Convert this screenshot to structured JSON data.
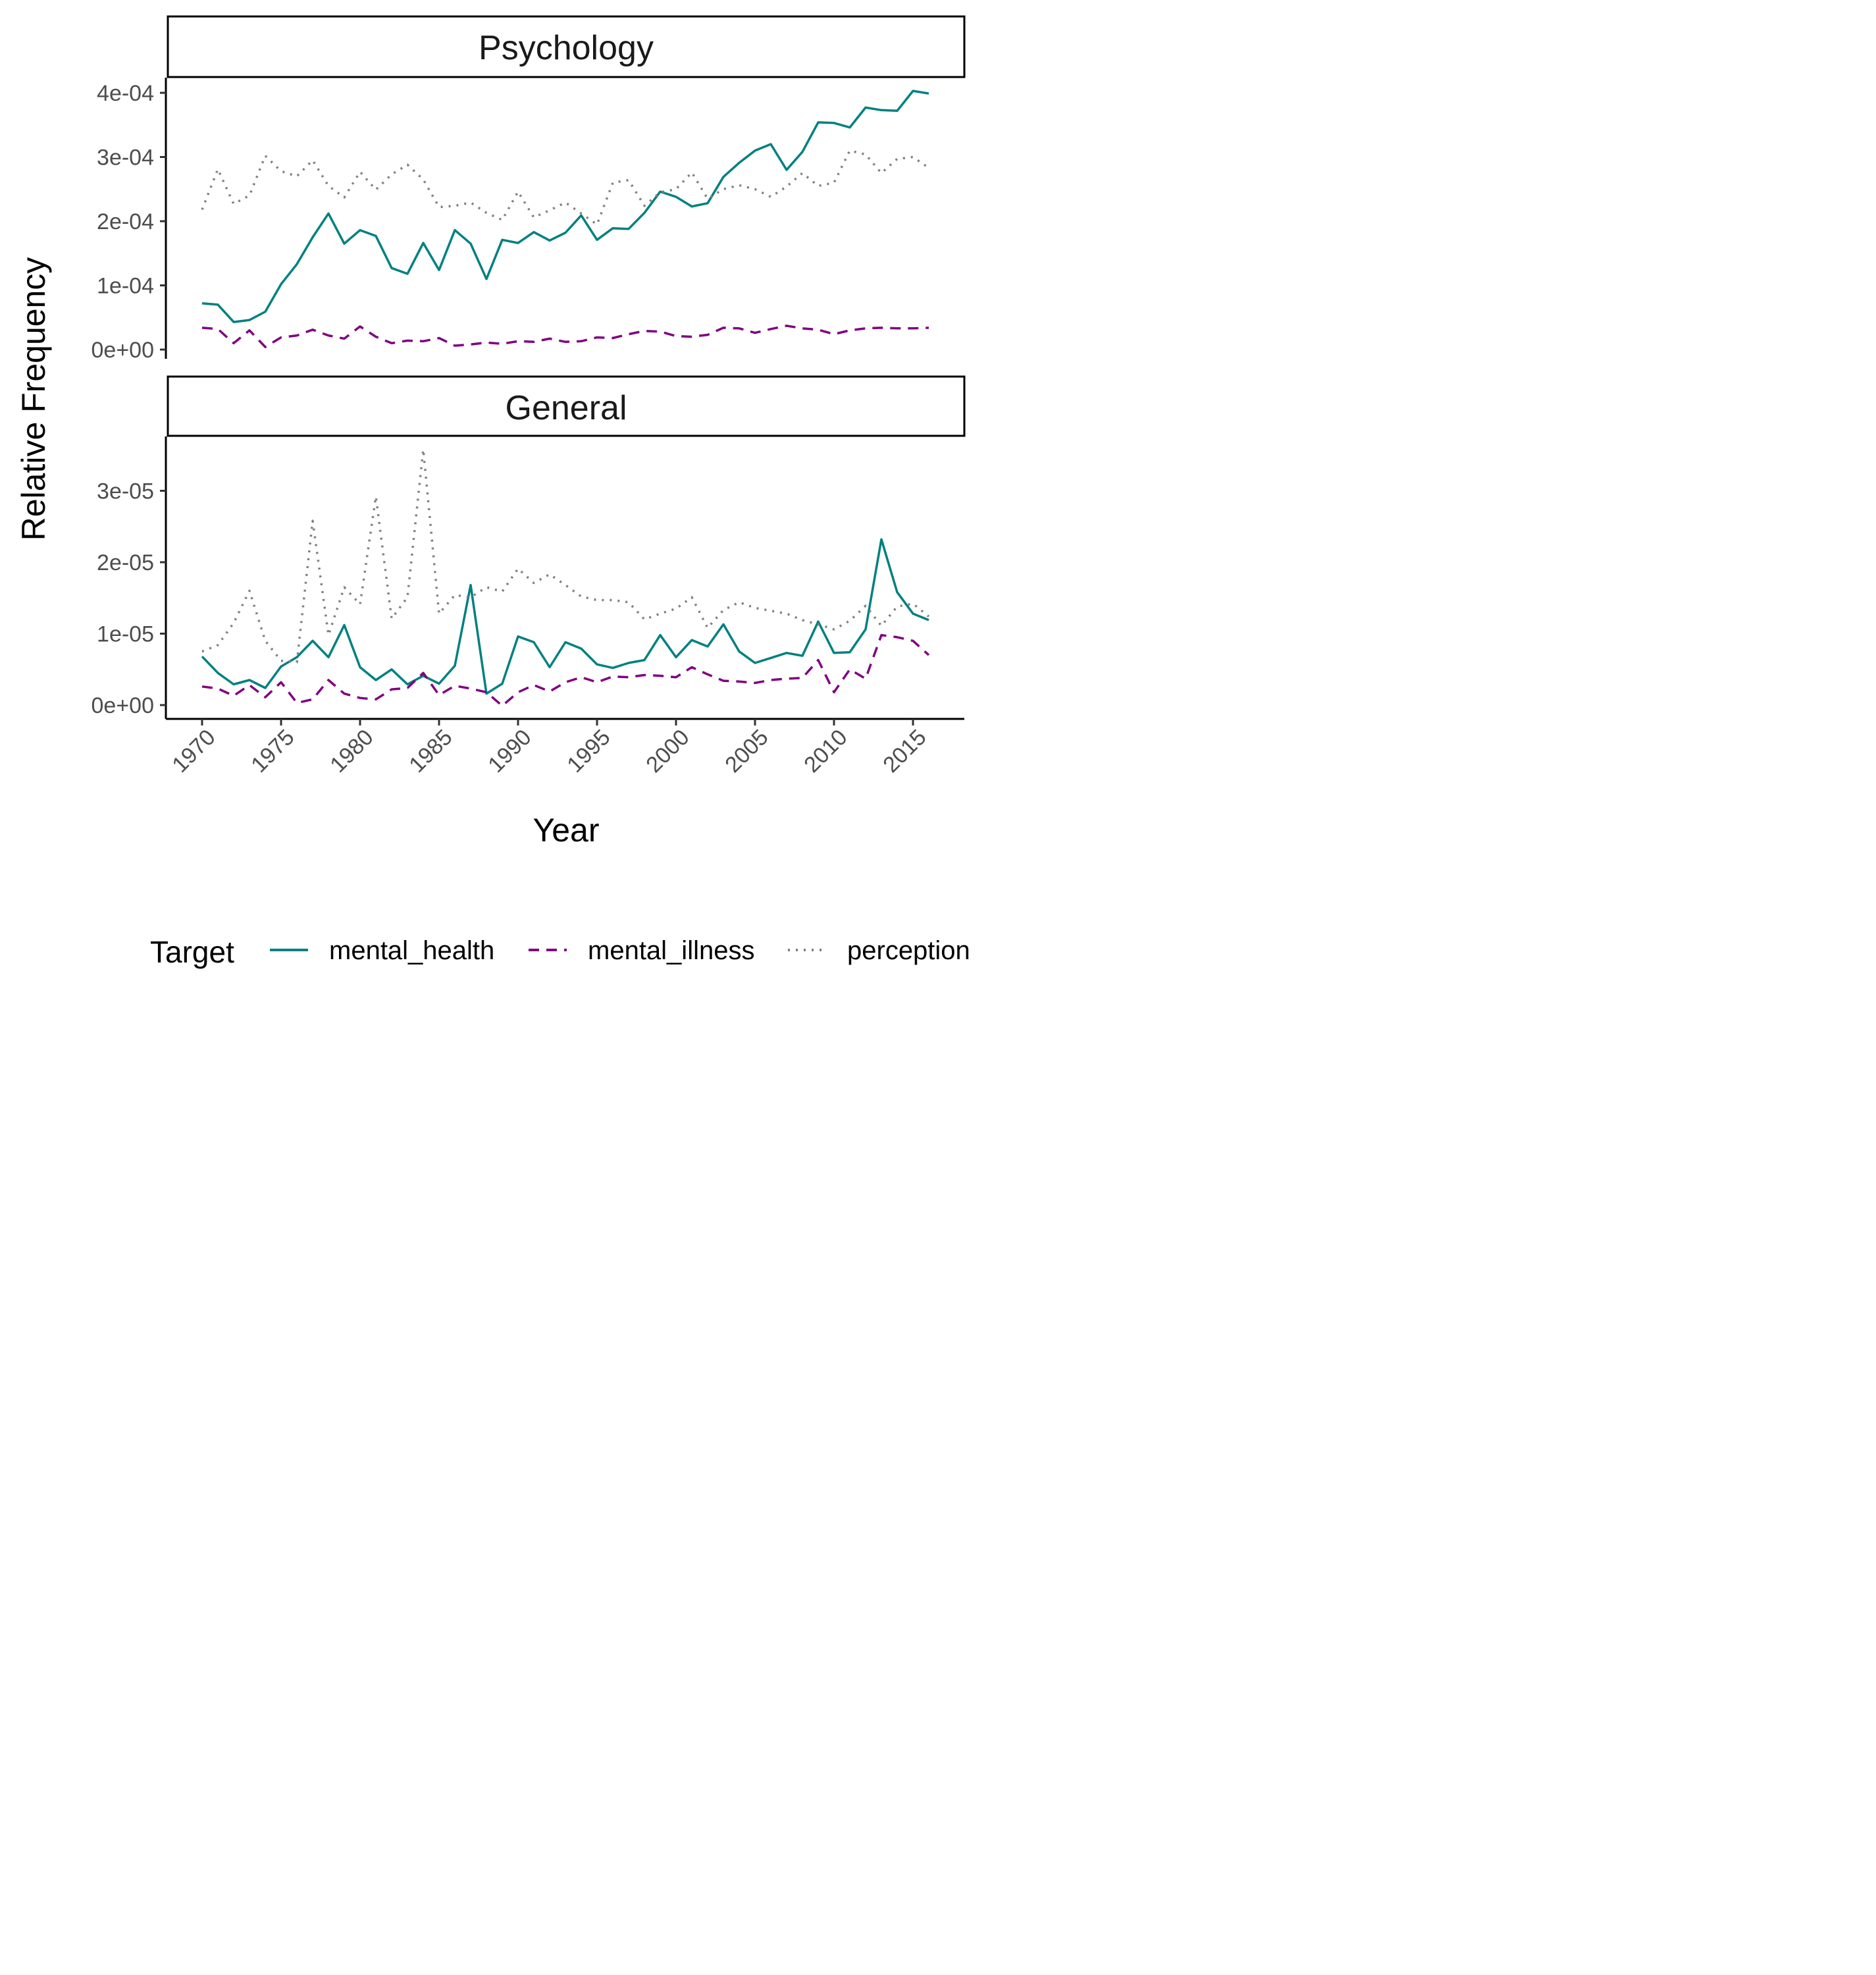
{
  "chart_data": {
    "type": "line",
    "xlabel": "Year",
    "ylabel": "Relative Frequency",
    "x_ticks": [
      1970,
      1975,
      1980,
      1985,
      1990,
      1995,
      2000,
      2005,
      2010,
      2015
    ],
    "legend": {
      "title": "Target",
      "position": "bottom",
      "entries": [
        {
          "name": "mental_health",
          "color": "#008080",
          "dash": "solid"
        },
        {
          "name": "mental_illness",
          "color": "#800080",
          "dash": "dashed"
        },
        {
          "name": "perception",
          "color": "#808080",
          "dash": "dotted"
        }
      ]
    },
    "panels": [
      {
        "title": "Psychology",
        "ylim": [
          0,
          0.00042
        ],
        "y_ticks": [
          0,
          0.0001,
          0.0002,
          0.0003,
          0.0004
        ],
        "y_tick_labels": [
          "0e+00",
          "1e-04",
          "2e-04",
          "3e-04",
          "4e-04"
        ],
        "x": [
          1970,
          1971,
          1972,
          1973,
          1974,
          1975,
          1976,
          1977,
          1978,
          1979,
          1980,
          1981,
          1982,
          1983,
          1984,
          1985,
          1986,
          1987,
          1988,
          1989,
          1990,
          1991,
          1992,
          1993,
          1994,
          1995,
          1996,
          1997,
          1998,
          1999,
          2000,
          2001,
          2002,
          2003,
          2004,
          2005,
          2006,
          2007,
          2008,
          2009,
          2010,
          2011,
          2012,
          2013,
          2014,
          2015,
          2016
        ],
        "series": [
          {
            "name": "mental_health",
            "values": [
              7.2e-05,
              7e-05,
              4.3e-05,
              4.6e-05,
              5.9e-05,
              0.000102,
              0.000133,
              0.000175,
              0.000212,
              0.000165,
              0.000186,
              0.000177,
              0.000127,
              0.000118,
              0.000166,
              0.000124,
              0.000186,
              0.000165,
              0.00011,
              0.000171,
              0.000166,
              0.000183,
              0.00017,
              0.000182,
              0.000209,
              0.000171,
              0.000189,
              0.000188,
              0.000213,
              0.000246,
              0.000238,
              0.000223,
              0.000228,
              0.000269,
              0.000291,
              0.00031,
              0.00032,
              0.00028,
              0.000308,
              0.000354,
              0.000353,
              0.000346,
              0.000377,
              0.000373,
              0.000372,
              0.000403,
              0.000399
            ]
          },
          {
            "name": "mental_illness",
            "values": [
              3.4e-05,
              3.2e-05,
              1e-05,
              3e-05,
              4e-06,
              1.9e-05,
              2.2e-05,
              3.1e-05,
              2.2e-05,
              1.7e-05,
              3.6e-05,
              2e-05,
              1e-05,
              1.4e-05,
              1.3e-05,
              1.8e-05,
              6e-06,
              8e-06,
              1.1e-05,
              9e-06,
              1.3e-05,
              1.2e-05,
              1.7e-05,
              1.2e-05,
              1.3e-05,
              1.9e-05,
              1.8e-05,
              2.4e-05,
              2.9e-05,
              2.8e-05,
              2.1e-05,
              2e-05,
              2.3e-05,
              3.4e-05,
              3.3e-05,
              2.6e-05,
              3.2e-05,
              3.7e-05,
              3.3e-05,
              3.1e-05,
              2.4e-05,
              3e-05,
              3.3e-05,
              3.4e-05,
              3.3e-05,
              3.3e-05,
              3.4e-05
            ]
          },
          {
            "name": "perception",
            "values": [
              0.000218,
              0.000281,
              0.000227,
              0.00024,
              0.000302,
              0.000278,
              0.00027,
              0.000295,
              0.000255,
              0.000237,
              0.000277,
              0.000249,
              0.000273,
              0.000288,
              0.000265,
              0.000222,
              0.000224,
              0.000229,
              0.000213,
              0.000202,
              0.000246,
              0.000206,
              0.000217,
              0.000229,
              0.000212,
              0.000195,
              0.00026,
              0.000264,
              0.000224,
              0.000245,
              0.00025,
              0.000276,
              0.000235,
              0.00025,
              0.000256,
              0.00025,
              0.000238,
              0.000254,
              0.000275,
              0.000255,
              0.00026,
              0.00031,
              0.000304,
              0.000275,
              0.000297,
              0.0003,
              0.000283
            ]
          }
        ]
      },
      {
        "title": "General",
        "ylim": [
          -2e-06,
          3.7e-05
        ],
        "y_ticks": [
          0,
          1e-05,
          2e-05,
          3e-05
        ],
        "y_tick_labels": [
          "0e+00",
          "1e-05",
          "2e-05",
          "3e-05"
        ],
        "x": [
          1970,
          1971,
          1972,
          1973,
          1974,
          1975,
          1976,
          1977,
          1978,
          1979,
          1980,
          1981,
          1982,
          1983,
          1984,
          1985,
          1986,
          1987,
          1988,
          1989,
          1990,
          1991,
          1992,
          1993,
          1994,
          1995,
          1996,
          1997,
          1998,
          1999,
          2000,
          2001,
          2002,
          2003,
          2004,
          2005,
          2006,
          2007,
          2008,
          2009,
          2010,
          2011,
          2012,
          2013,
          2014,
          2015,
          2016
        ],
        "series": [
          {
            "name": "mental_health",
            "values": [
              6.8e-06,
              4.5e-06,
              2.9e-06,
              3.5e-06,
              2.4e-06,
              5.4e-06,
              6.7e-06,
              9e-06,
              6.7e-06,
              1.12e-05,
              5.3e-06,
              3.5e-06,
              5e-06,
              2.9e-06,
              4.1e-06,
              3e-06,
              5.5e-06,
              1.68e-05,
              1.6e-06,
              3e-06,
              9.6e-06,
              8.8e-06,
              5.3e-06,
              8.8e-06,
              7.9e-06,
              5.7e-06,
              5.2e-06,
              5.9e-06,
              6.3e-06,
              9.8e-06,
              6.7e-06,
              9.1e-06,
              8.2e-06,
              1.13e-05,
              7.5e-06,
              5.9e-06,
              6.6e-06,
              7.3e-06,
              6.9e-06,
              1.17e-05,
              7.3e-06,
              7.4e-06,
              1.06e-05,
              2.32e-05,
              1.58e-05,
              1.28e-05,
              1.19e-05
            ]
          },
          {
            "name": "mental_illness",
            "values": [
              2.6e-06,
              2.3e-06,
              1.3e-06,
              2.8e-06,
              1.1e-06,
              3.2e-06,
              3e-07,
              8e-07,
              3.5e-06,
              1.6e-06,
              1e-06,
              8e-07,
              2.2e-06,
              2.4e-06,
              4.5e-06,
              1.4e-06,
              2.7e-06,
              2.3e-06,
              1.8e-06,
              -1e-07,
              1.8e-06,
              2.8e-06,
              1.9e-06,
              3.2e-06,
              3.9e-06,
              3.2e-06,
              4e-06,
              3.9e-06,
              4.2e-06,
              4.1e-06,
              3.9e-06,
              5.3e-06,
              4.3e-06,
              3.4e-06,
              3.3e-06,
              3.1e-06,
              3.5e-06,
              3.7e-06,
              3.8e-06,
              6.3e-06,
              1.8e-06,
              5e-06,
              3.7e-06,
              9.8e-06,
              9.5e-06,
              9e-06,
              7e-06
            ]
          },
          {
            "name": "perception",
            "values": [
              7.5e-06,
              8.4e-06,
              1.15e-05,
              1.6e-05,
              9e-06,
              6.2e-06,
              6e-06,
              2.58e-05,
              9.8e-06,
              1.65e-05,
              1.41e-05,
              2.92e-05,
              1.21e-05,
              1.51e-05,
              3.58e-05,
              1.28e-05,
              1.54e-05,
              1.51e-05,
              1.65e-05,
              1.59e-05,
              1.91e-05,
              1.71e-05,
              1.83e-05,
              1.68e-05,
              1.52e-05,
              1.47e-05,
              1.47e-05,
              1.44e-05,
              1.2e-05,
              1.28e-05,
              1.35e-05,
              1.51e-05,
              1.08e-05,
              1.33e-05,
              1.44e-05,
              1.36e-05,
              1.32e-05,
              1.28e-05,
              1.19e-05,
              1.13e-05,
              1.06e-05,
              1.18e-05,
              1.39e-05,
              1.11e-05,
              1.38e-05,
              1.42e-05,
              1.24e-05
            ]
          }
        ]
      }
    ]
  }
}
